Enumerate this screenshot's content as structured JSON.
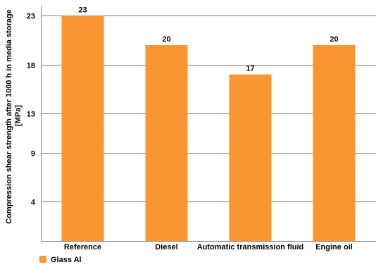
{
  "chart_data": {
    "type": "bar",
    "categories": [
      "Reference",
      "Diesel",
      "Automatic transmission fluid",
      "Engine oil"
    ],
    "series": [
      {
        "name": "Glass Al",
        "values": [
          23,
          20,
          17,
          20
        ]
      }
    ],
    "data_labels": [
      "23",
      "20",
      "17",
      "20"
    ],
    "ylabel_lines": [
      "Compression shear strength after 1000 h in media storage",
      "[MPa]"
    ],
    "xlabel": "",
    "yticks": [
      4,
      9,
      13,
      18,
      23
    ],
    "ylim": [
      0,
      23.6
    ],
    "grid": true,
    "legend": "bottom-left",
    "colors": {
      "bar": "#FA9632",
      "grid": "#7f7f7f",
      "axis": "#7f7f7f"
    }
  }
}
